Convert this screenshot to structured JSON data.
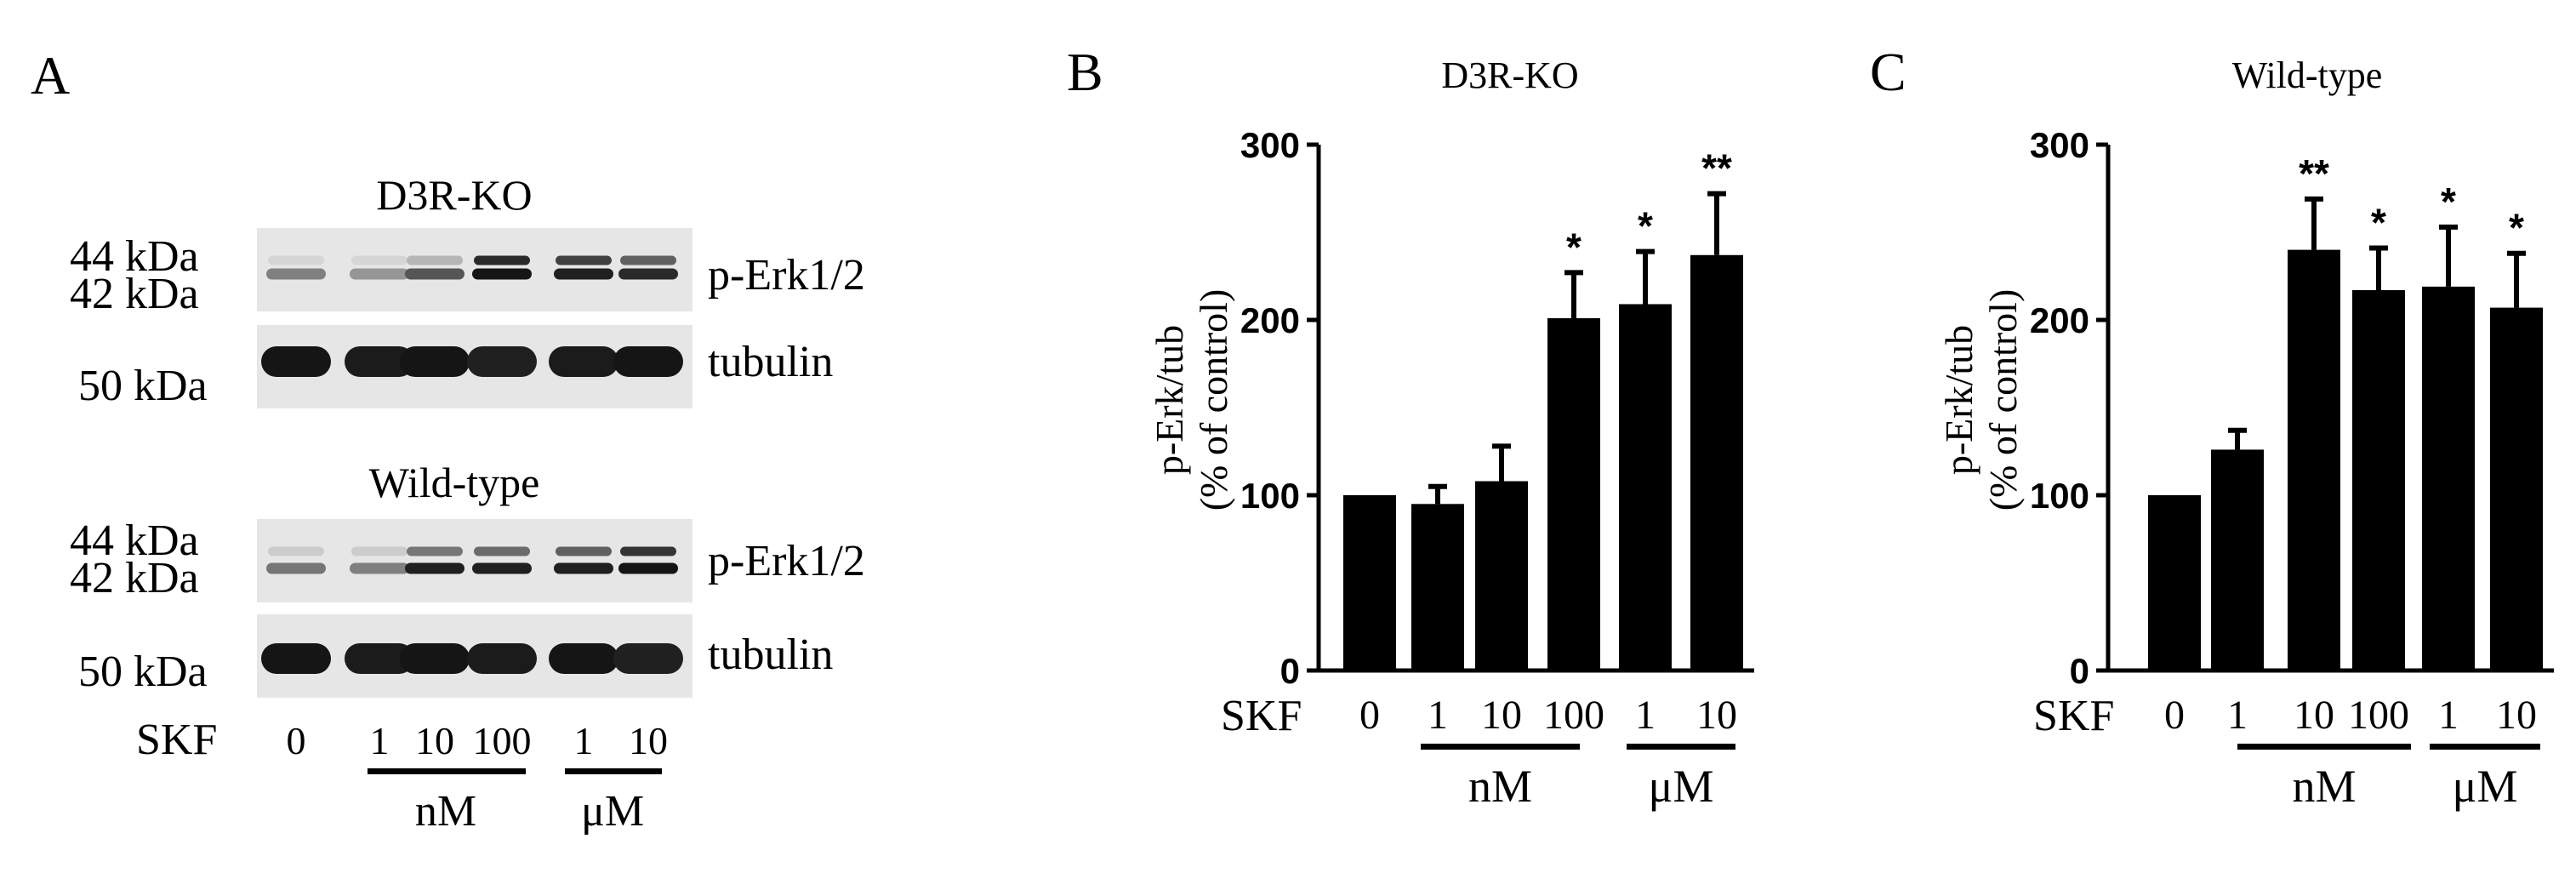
{
  "panels": {
    "a": {
      "letter": "A",
      "blots": [
        {
          "title": "D3R-KO",
          "perk_mw_top": "44 kDa",
          "perk_mw_bottom": "42 kDa",
          "perk_label": "p-Erk1/2",
          "tub_mw": "50 kDa",
          "tub_label": "tubulin",
          "perk_upper": [
            0.05,
            0.05,
            0.2,
            0.85,
            0.75,
            0.6
          ],
          "perk_lower": [
            0.45,
            0.35,
            0.65,
            0.95,
            0.9,
            0.85
          ],
          "tub": [
            0.95,
            0.92,
            0.95,
            0.9,
            0.92,
            0.95
          ]
        },
        {
          "title": "Wild-type",
          "perk_mw_top": "44 kDa",
          "perk_mw_bottom": "42 kDa",
          "perk_label": "p-Erk1/2",
          "tub_mw": "50 kDa",
          "tub_label": "tubulin",
          "perk_upper": [
            0.1,
            0.1,
            0.5,
            0.55,
            0.6,
            0.8
          ],
          "perk_lower": [
            0.5,
            0.45,
            0.9,
            0.9,
            0.9,
            0.95
          ],
          "tub": [
            0.95,
            0.92,
            0.95,
            0.92,
            0.95,
            0.9
          ]
        }
      ],
      "x_label": "SKF",
      "doses": [
        "0",
        "1",
        "10",
        "100",
        "1",
        "10"
      ],
      "unit_nm": "nM",
      "unit_um": "μM"
    },
    "b": {
      "letter": "B"
    },
    "c": {
      "letter": "C"
    }
  },
  "chart_data": [
    {
      "type": "bar",
      "title": "D3R-KO",
      "ylabel_line1": "p-Erk/tub",
      "ylabel_line2": "(% of control)",
      "xlabel": "SKF",
      "categories": [
        "0",
        "1",
        "10",
        "100",
        "1",
        "10"
      ],
      "values": [
        100,
        95,
        108,
        201,
        209,
        237
      ],
      "errors": [
        0,
        10,
        20,
        26,
        30,
        35
      ],
      "significance": [
        "",
        "",
        "",
        "*",
        "*",
        "**"
      ],
      "unit_groups": [
        "nM",
        "μM"
      ],
      "ylim": [
        0,
        300
      ],
      "yticks": [
        0,
        100,
        200,
        300
      ],
      "grid": false
    },
    {
      "type": "bar",
      "title": "Wild-type",
      "ylabel_line1": "p-Erk/tub",
      "ylabel_line2": "(% of control)",
      "xlabel": "SKF",
      "categories": [
        "0",
        "1",
        "10",
        "100",
        "1",
        "10"
      ],
      "values": [
        100,
        126,
        240,
        217,
        219,
        207
      ],
      "errors": [
        0,
        11,
        29,
        24,
        34,
        31
      ],
      "significance": [
        "",
        "",
        "**",
        "*",
        "*",
        "*"
      ],
      "unit_groups": [
        "nM",
        "μM"
      ],
      "ylim": [
        0,
        300
      ],
      "yticks": [
        0,
        100,
        200,
        300
      ],
      "grid": false
    }
  ]
}
